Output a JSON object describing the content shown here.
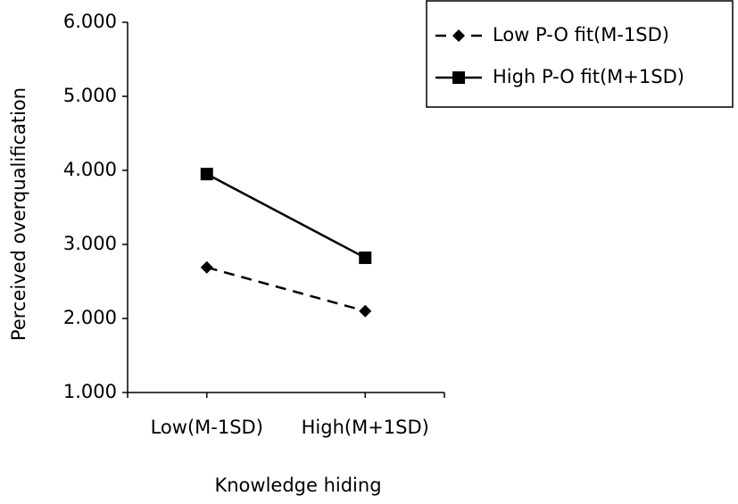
{
  "chart_data": {
    "type": "line",
    "x_label": "Knowledge hiding",
    "y_label": "Perceived overqualification",
    "categories": [
      "Low(M-1SD)",
      "High(M+1SD)"
    ],
    "series": [
      {
        "name": "Low P-O fit(M-1SD)",
        "color": "#000000",
        "marker": "diamond",
        "linestyle": "dashed",
        "values": [
          2.69,
          2.1
        ]
      },
      {
        "name": "High P-O fit(M+1SD)",
        "color": "#000000",
        "marker": "square",
        "linestyle": "solid",
        "values": [
          3.95,
          2.82
        ]
      }
    ],
    "ylim": [
      1,
      6
    ],
    "yticks": [
      {
        "value": 1,
        "label": "1.000"
      },
      {
        "value": 2,
        "label": "2.000"
      },
      {
        "value": 3,
        "label": "3.000"
      },
      {
        "value": 4,
        "label": "4.000"
      },
      {
        "value": 5,
        "label": "5.000"
      },
      {
        "value": 6,
        "label": "6.000"
      }
    ],
    "legend": "upper right",
    "grid": false
  }
}
